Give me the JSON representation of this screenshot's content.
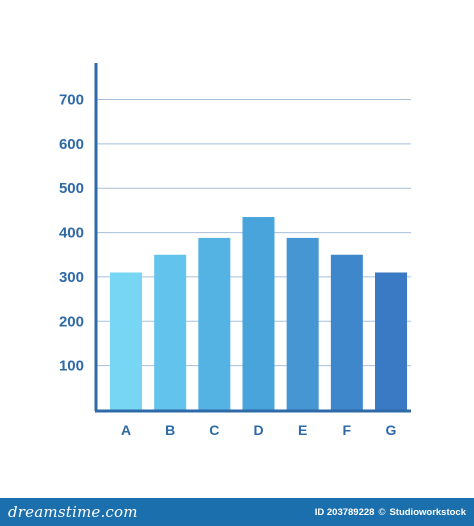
{
  "chart_data": {
    "type": "bar",
    "categories": [
      "A",
      "B",
      "C",
      "D",
      "E",
      "F",
      "G"
    ],
    "values": [
      310,
      350,
      388,
      435,
      388,
      350,
      310
    ],
    "title": "",
    "xlabel": "",
    "ylabel": "",
    "ylim": [
      0,
      780
    ],
    "yticks": [
      100,
      200,
      300,
      400,
      500,
      600,
      700
    ],
    "grid": true,
    "colors": [
      "#76d6f3",
      "#62c3ec",
      "#55b3e4",
      "#4aa4dc",
      "#4596d3",
      "#3f87cb",
      "#3a79c4"
    ],
    "axis_color": "#2e6aa8",
    "gridline_color": "#a8c0db"
  },
  "footer": {
    "brand": "dreamstime.com",
    "id_text": "ID 203789228",
    "separator": "©",
    "author": "Studioworkstock",
    "background_color": "#1c6fad"
  }
}
